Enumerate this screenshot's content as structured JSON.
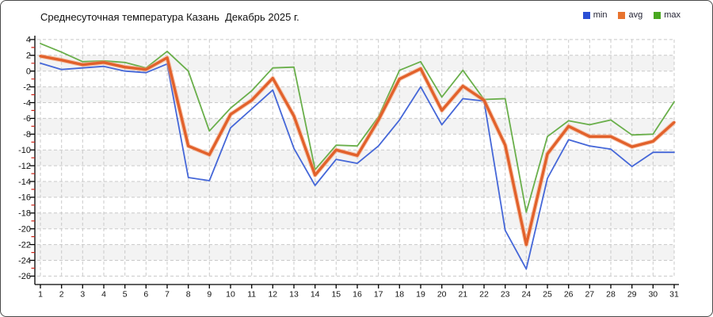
{
  "title": "Среднесуточная температура Казань  Декабрь 2025 г.",
  "chart_data": {
    "type": "line",
    "title": "Среднесуточная температура Казань  Декабрь 2025 г.",
    "xlabel": "",
    "ylabel": "",
    "ylim": [
      -26,
      4
    ],
    "ytick_step": 2,
    "grid": "dashed",
    "legend_position": "top-right",
    "x": [
      1,
      2,
      3,
      4,
      5,
      6,
      7,
      8,
      9,
      10,
      11,
      12,
      13,
      14,
      15,
      16,
      17,
      18,
      19,
      20,
      21,
      22,
      23,
      24,
      25,
      26,
      27,
      28,
      29,
      30,
      31
    ],
    "x_ticks": [
      1,
      2,
      3,
      4,
      5,
      6,
      7,
      8,
      9,
      10,
      11,
      12,
      13,
      14,
      15,
      16,
      17,
      18,
      19,
      20,
      21,
      22,
      23,
      24,
      25,
      26,
      27,
      28,
      29,
      30,
      31
    ],
    "y_ticks": [
      4,
      2,
      0,
      -2,
      -4,
      -6,
      -8,
      -10,
      -12,
      -14,
      -16,
      -18,
      -20,
      -22,
      -24,
      -26
    ],
    "band_colors": [
      "#ffffff",
      "#f3f3f3"
    ],
    "gridline_color": "#c9c9c9",
    "axis_color": "#000000",
    "minor_tick_color": "#cc2418",
    "series": [
      {
        "name": "min",
        "swatch_color": "#2a4fd5",
        "line_color": "#4567d8",
        "line_width": 1.8,
        "values": [
          1.0,
          0.2,
          0.4,
          0.6,
          0.0,
          -0.2,
          0.9,
          -13.5,
          -13.9,
          -7.2,
          -4.8,
          -2.4,
          -9.8,
          -14.5,
          -11.2,
          -11.7,
          -9.5,
          -6.2,
          -2.0,
          -6.8,
          -3.5,
          -3.8,
          -20.2,
          -25.1,
          -13.6,
          -8.7,
          -9.5,
          -9.9,
          -12.1,
          -10.3,
          -10.3
        ]
      },
      {
        "name": "avg",
        "swatch_color": "#e8732e",
        "line_color": "#e2612b",
        "halo_color": "#f2a077",
        "line_width": 3.4,
        "values": [
          1.9,
          1.4,
          0.8,
          1.1,
          0.5,
          0.2,
          1.7,
          -9.5,
          -10.6,
          -5.5,
          -3.7,
          -0.9,
          -5.7,
          -13.2,
          -10.0,
          -10.7,
          -6.2,
          -1.0,
          0.3,
          -5.0,
          -1.9,
          -3.7,
          -9.4,
          -22.0,
          -10.5,
          -7.0,
          -8.3,
          -8.3,
          -9.6,
          -8.9,
          -6.5
        ]
      },
      {
        "name": "max",
        "swatch_color": "#49a81f",
        "line_color": "#6aaf4b",
        "line_width": 1.8,
        "values": [
          3.5,
          2.4,
          1.2,
          1.3,
          1.1,
          0.4,
          2.5,
          0.0,
          -7.6,
          -4.7,
          -2.5,
          0.4,
          0.5,
          -12.5,
          -9.4,
          -9.5,
          -5.8,
          0.1,
          1.2,
          -3.3,
          0.1,
          -3.6,
          -3.5,
          -17.9,
          -8.3,
          -6.3,
          -6.8,
          -6.2,
          -8.1,
          -8.0,
          -3.9
        ]
      }
    ]
  }
}
